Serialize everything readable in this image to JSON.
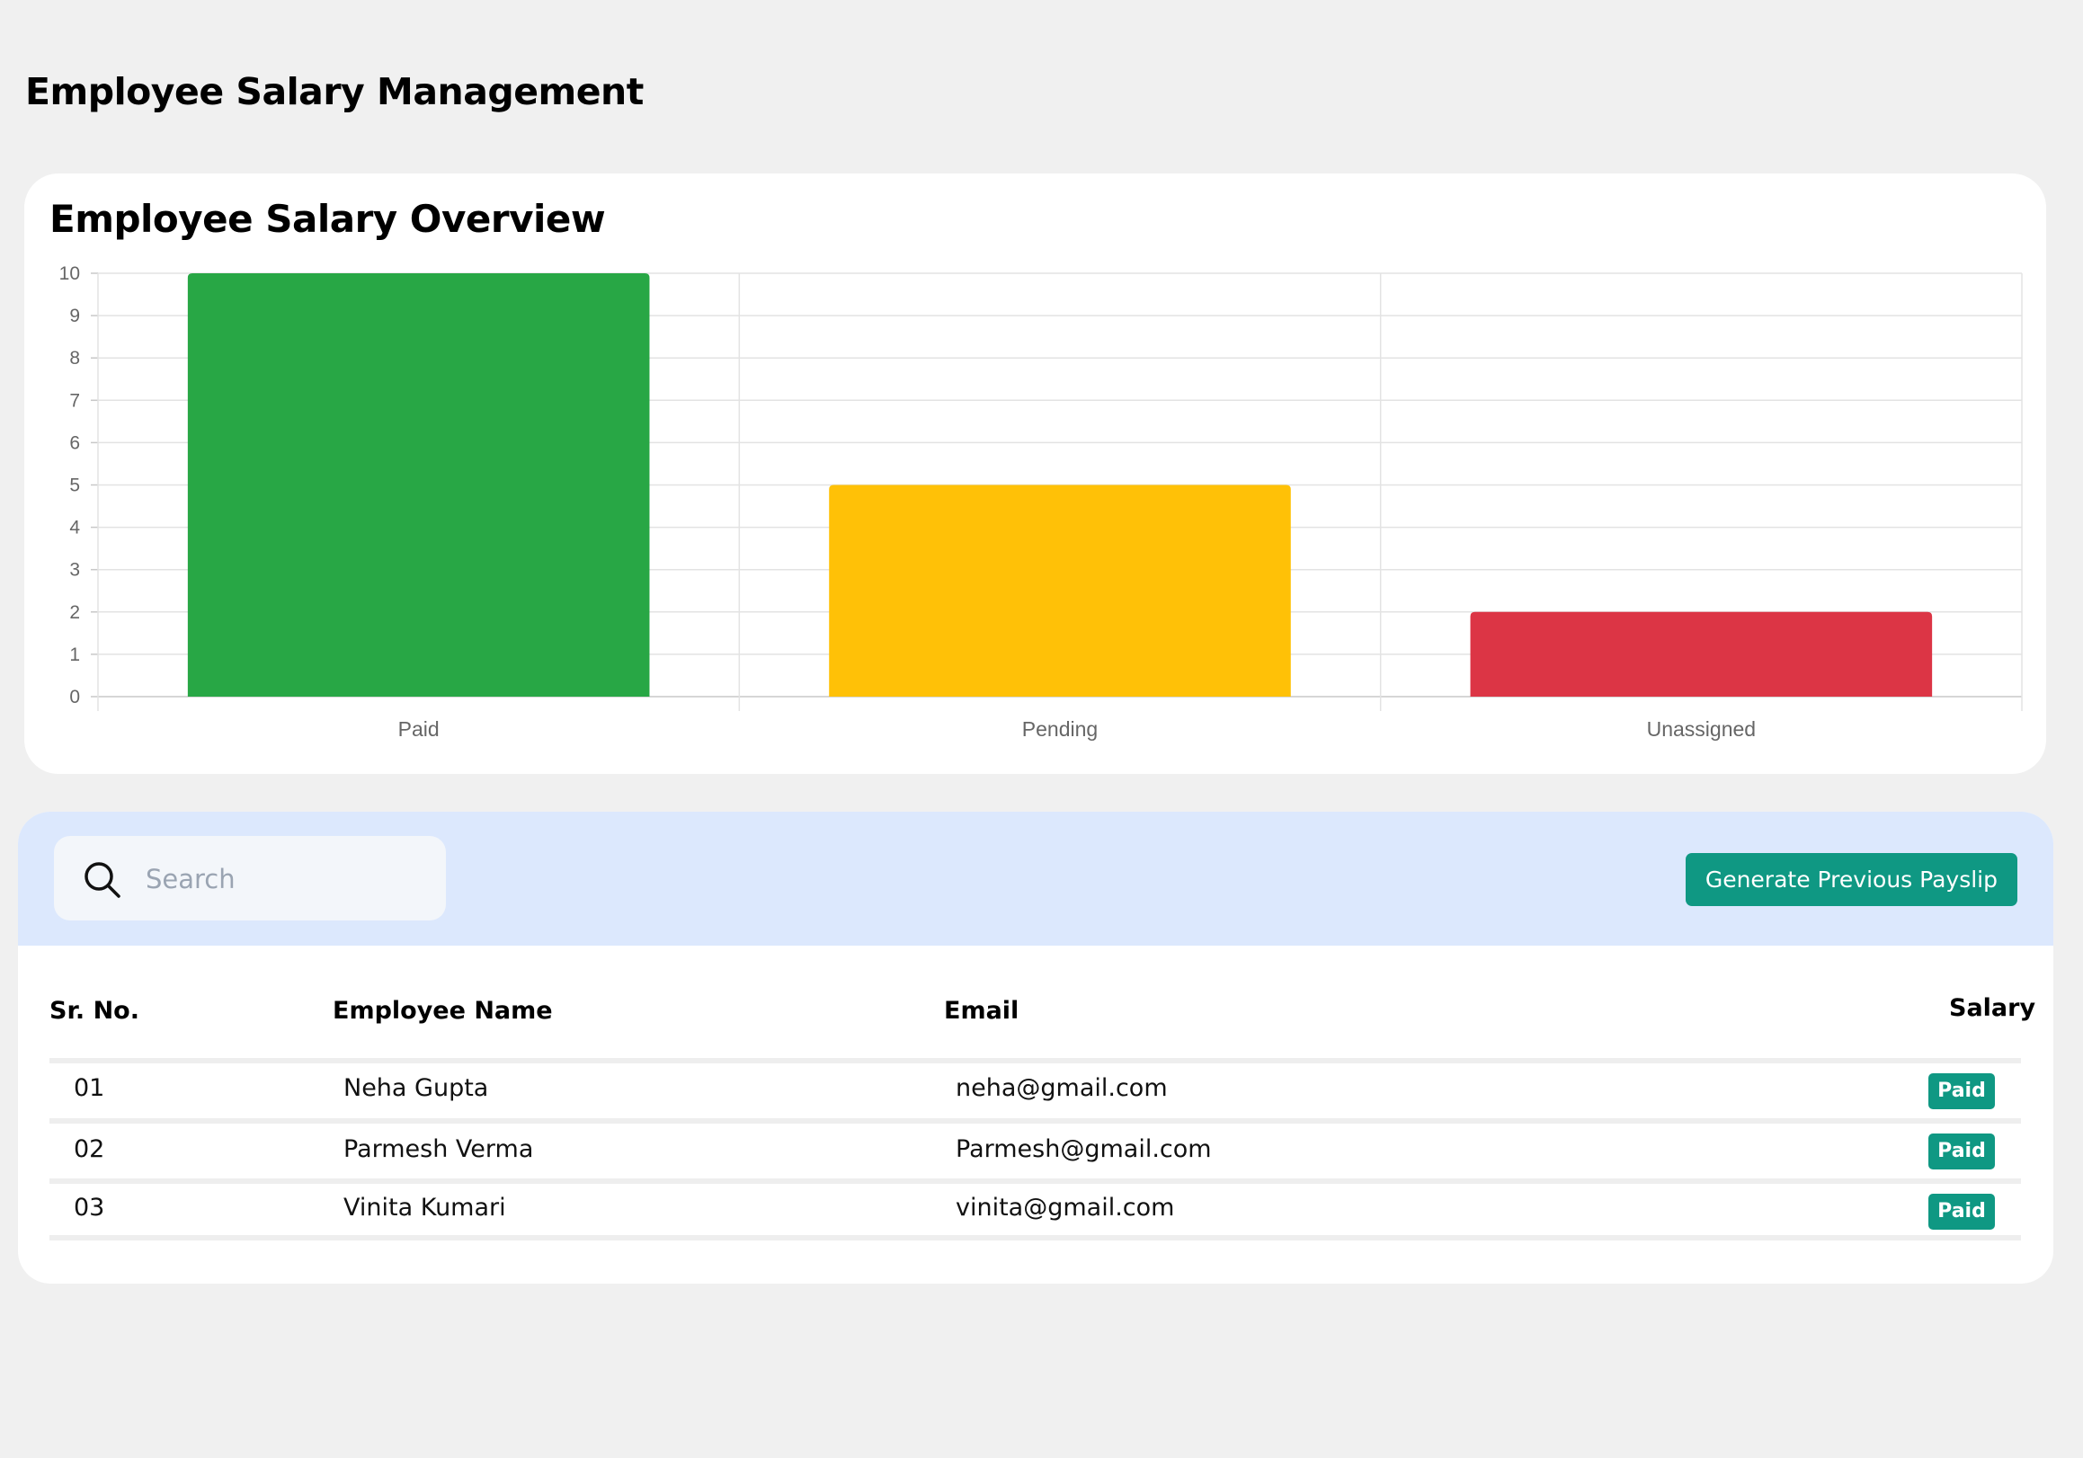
{
  "page": {
    "title": "Employee Salary Management"
  },
  "chart": {
    "title": "Employee Salary Overview"
  },
  "chart_data": {
    "type": "bar",
    "title": "Employee Salary Overview",
    "categories": [
      "Paid",
      "Pending",
      "Unassigned"
    ],
    "values": [
      10,
      5,
      2
    ],
    "colors": [
      "#28a745",
      "#ffc107",
      "#dc3545"
    ],
    "ylim": [
      0,
      10
    ],
    "yticks": [
      "0",
      "1",
      "2",
      "3",
      "4",
      "5",
      "6",
      "7",
      "8",
      "9",
      "10"
    ],
    "grid": true,
    "legend": "none"
  },
  "toolbar": {
    "search_placeholder": "Search",
    "search_icon": "search-icon",
    "generate_label": "Generate Previous Payslip"
  },
  "table": {
    "headers": {
      "sr": "Sr. No.",
      "name": "Employee Name",
      "email": "Email",
      "salary": "Salary"
    },
    "rows": [
      {
        "sr": "01",
        "name": "Neha Gupta",
        "email": "neha@gmail.com",
        "status": "Paid"
      },
      {
        "sr": "02",
        "name": "Parmesh Verma",
        "email": "Parmesh@gmail.com",
        "status": "Paid"
      },
      {
        "sr": "03",
        "name": "Vinita Kumari",
        "email": "vinita@gmail.com",
        "status": "Paid"
      }
    ]
  },
  "colors": {
    "accent": "#0f9883",
    "toolbar_bg": "#dce8fd",
    "page_bg": "#f0f0f0"
  }
}
